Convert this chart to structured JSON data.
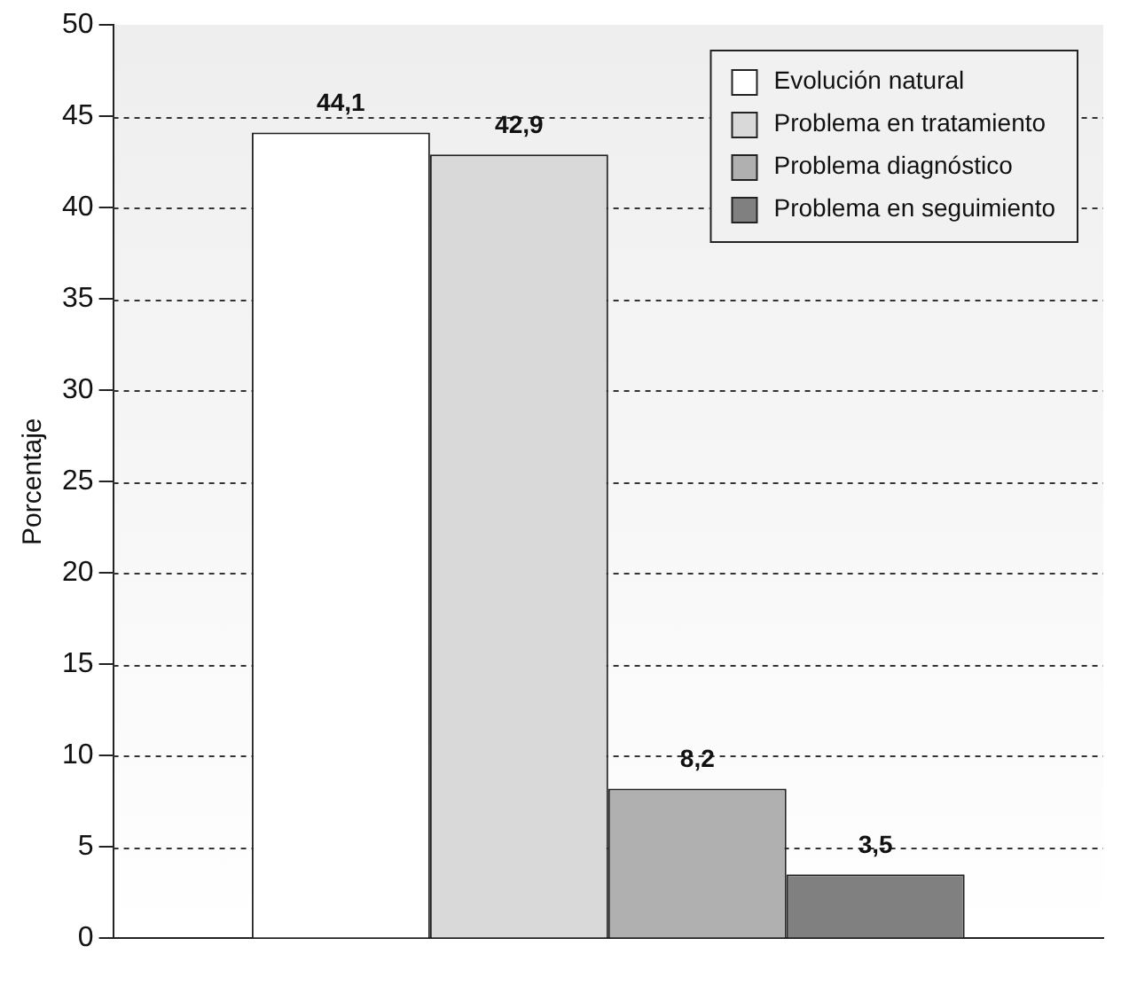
{
  "chart_data": {
    "type": "bar",
    "ylabel": "Porcentaje",
    "categories": [
      null
    ],
    "series": [
      {
        "name": "Evolución natural",
        "color": "#ffffff",
        "values": [
          44.1
        ],
        "value_labels": [
          "44,1"
        ]
      },
      {
        "name": "Problema en tratamiento",
        "color": "#d9d9d9",
        "values": [
          42.9
        ],
        "value_labels": [
          "42,9"
        ]
      },
      {
        "name": "Problema diagnóstico",
        "color": "#b0b0b0",
        "values": [
          8.2
        ],
        "value_labels": [
          "8,2"
        ]
      },
      {
        "name": "Problema en seguimiento",
        "color": "#808080",
        "values": [
          3.5
        ],
        "value_labels": [
          "3,5"
        ]
      }
    ],
    "ylim": [
      0,
      50
    ],
    "yticks": [
      0,
      5,
      10,
      15,
      20,
      25,
      30,
      35,
      40,
      45,
      50
    ],
    "grid": "y",
    "legend": "top right"
  }
}
